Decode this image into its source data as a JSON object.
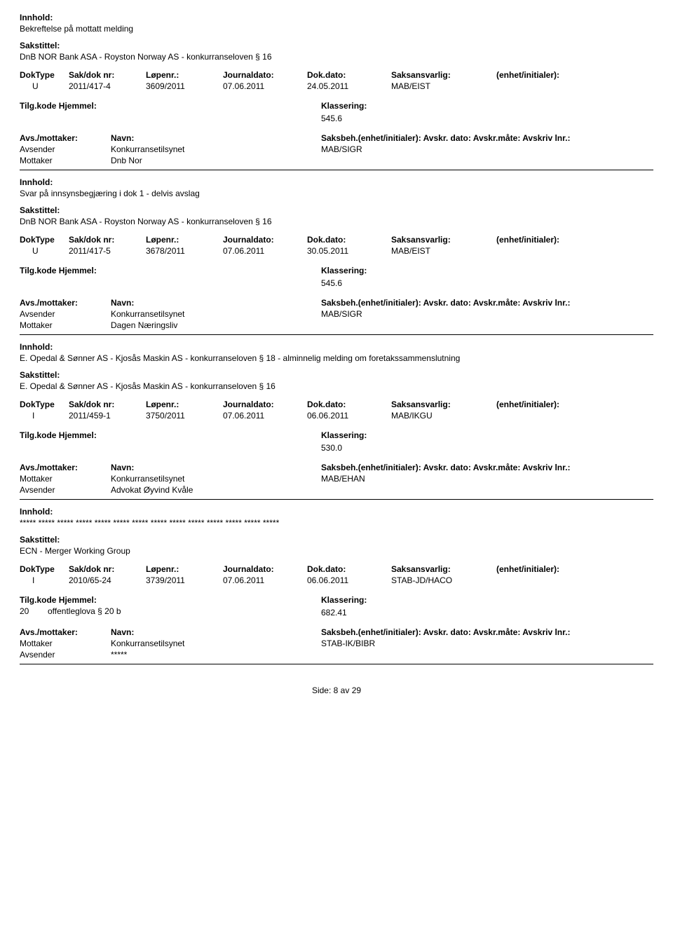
{
  "labels": {
    "innhold": "Innhold:",
    "sakstittel": "Sakstittel:",
    "doktype": "DokType",
    "sakdok": "Sak/dok nr:",
    "lopenr": "Løpenr.:",
    "journaldato": "Journaldato:",
    "dokdato": "Dok.dato:",
    "saksansvarlig": "Saksansvarlig:",
    "enhet": "(enhet/initialer):",
    "tilgkode": "Tilg.kode",
    "hjemmel": "Hjemmel:",
    "klassering": "Klassering:",
    "avsmottaker": "Avs./mottaker:",
    "navn": "Navn:",
    "saksbeh": "Saksbeh.(enhet/initialer): Avskr. dato: Avskr.måte: Avskriv lnr.:",
    "avsender": "Avsender",
    "mottaker": "Mottaker"
  },
  "records": [
    {
      "innhold": "Bekreftelse på mottatt melding",
      "sakstittel": "DnB NOR Bank ASA - Royston Norway AS - konkurranseloven § 16",
      "doktype": "U",
      "sakdok": "2011/417-4",
      "lopenr": "3609/2011",
      "journaldato": "07.06.2011",
      "dokdato": "24.05.2011",
      "saksansvarlig": "MAB/EIST",
      "tilgcode": "",
      "hjemmel": "",
      "klassering": "545.6",
      "parties": [
        {
          "role": "Avsender",
          "name": "Konkurransetilsynet",
          "code": "MAB/SIGR"
        },
        {
          "role": "Mottaker",
          "name": "Dnb Nor",
          "code": ""
        }
      ]
    },
    {
      "innhold": "Svar på innsynsbegjæring i dok 1 - delvis avslag",
      "sakstittel": "DnB NOR Bank ASA - Royston Norway AS - konkurranseloven § 16",
      "doktype": "U",
      "sakdok": "2011/417-5",
      "lopenr": "3678/2011",
      "journaldato": "07.06.2011",
      "dokdato": "30.05.2011",
      "saksansvarlig": "MAB/EIST",
      "tilgcode": "",
      "hjemmel": "",
      "klassering": "545.6",
      "parties": [
        {
          "role": "Avsender",
          "name": "Konkurransetilsynet",
          "code": "MAB/SIGR"
        },
        {
          "role": "Mottaker",
          "name": "Dagen Næringsliv",
          "code": ""
        }
      ]
    },
    {
      "innhold": "E. Opedal & Sønner AS - Kjosås Maskin AS - konkurranseloven § 18 - alminnelig melding om foretakssammenslutning",
      "sakstittel": "E. Opedal & Sønner AS - Kjosås Maskin AS - konkurranseloven § 16",
      "doktype": "I",
      "sakdok": "2011/459-1",
      "lopenr": "3750/2011",
      "journaldato": "07.06.2011",
      "dokdato": "06.06.2011",
      "saksansvarlig": "MAB/IKGU",
      "tilgcode": "",
      "hjemmel": "",
      "klassering": "530.0",
      "parties": [
        {
          "role": "Mottaker",
          "name": "Konkurransetilsynet",
          "code": "MAB/EHAN"
        },
        {
          "role": "Avsender",
          "name": "Advokat Øyvind Kvåle",
          "code": ""
        }
      ]
    },
    {
      "innhold": "***** ***** ***** ***** ***** ***** ***** ***** ***** ***** ***** ***** ***** *****",
      "sakstittel": "ECN - Merger Working Group",
      "doktype": "I",
      "sakdok": "2010/65-24",
      "lopenr": "3739/2011",
      "journaldato": "07.06.2011",
      "dokdato": "06.06.2011",
      "saksansvarlig": "STAB-JD/HACO",
      "tilgcode": "20",
      "hjemmel": "offentleglova § 20 b",
      "klassering": "682.41",
      "parties": [
        {
          "role": "Mottaker",
          "name": "Konkurransetilsynet",
          "code": "STAB-IK/BIBR"
        },
        {
          "role": "Avsender",
          "name": "*****",
          "code": ""
        }
      ]
    }
  ],
  "footer": {
    "side": "Side:",
    "page": "8",
    "av": "av",
    "total": "29"
  }
}
